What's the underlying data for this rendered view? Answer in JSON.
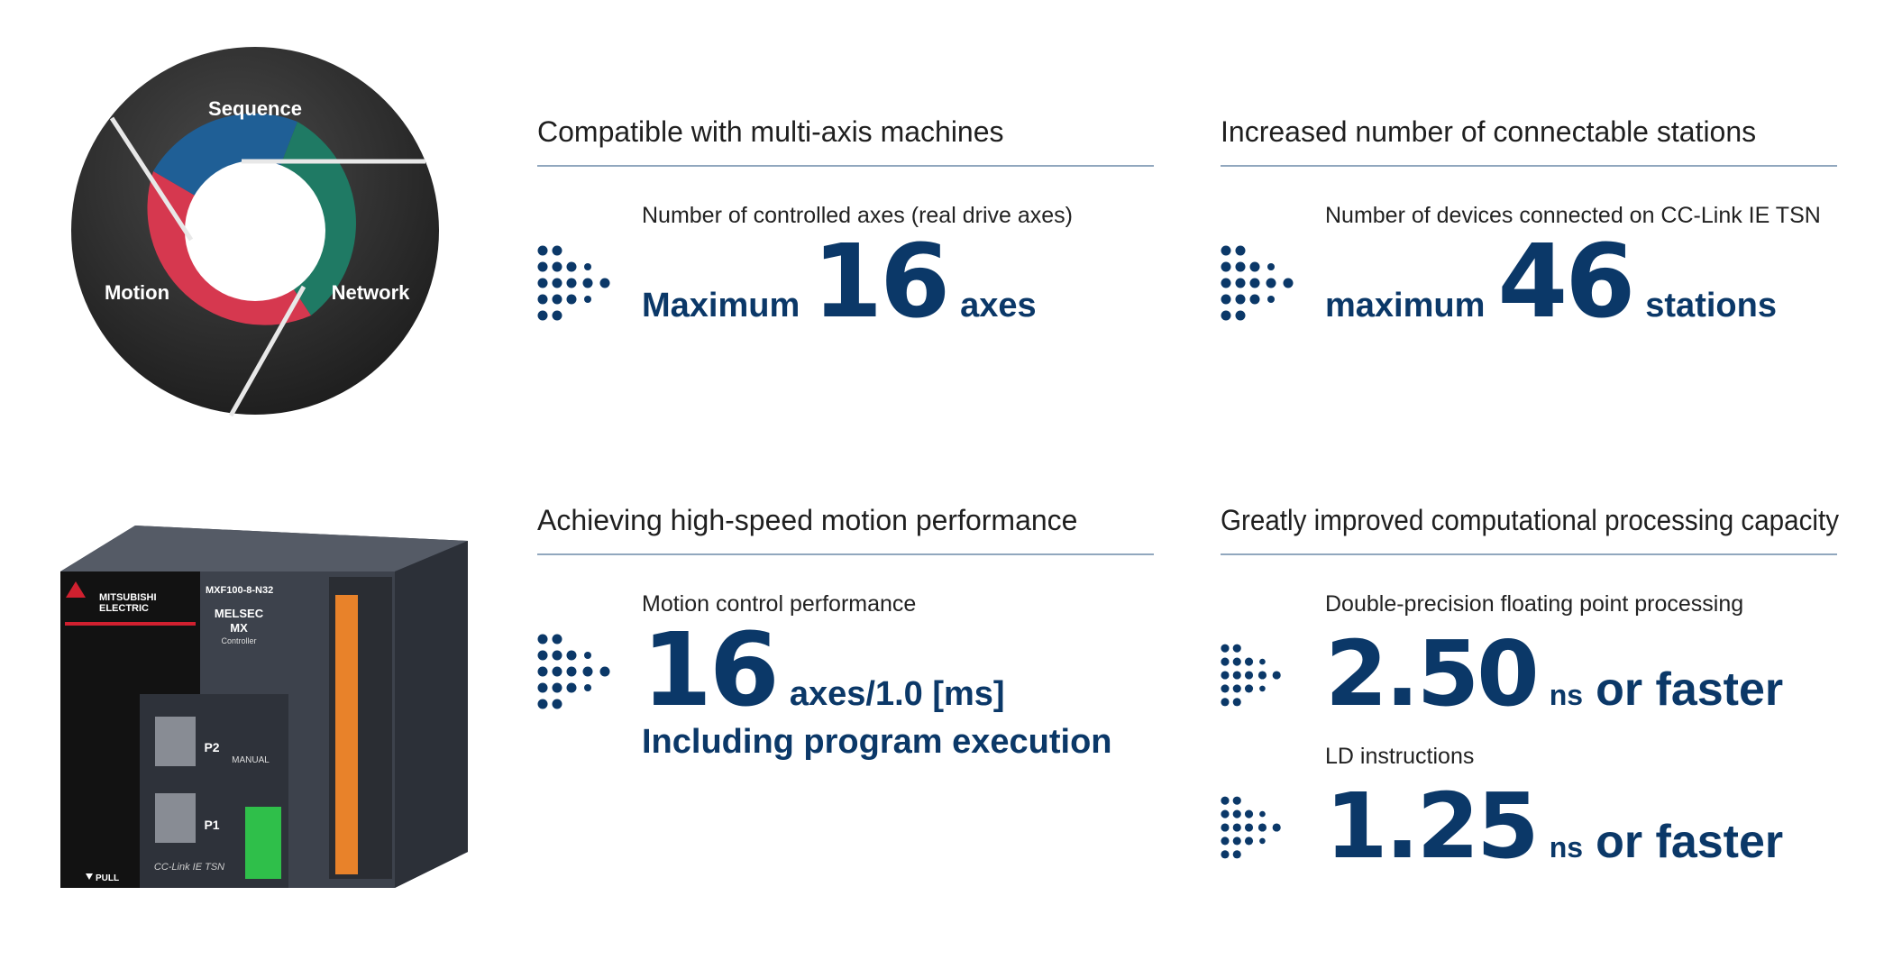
{
  "wheel": {
    "labels": [
      "Sequence",
      "Motion",
      "Network"
    ]
  },
  "product": {
    "brand": [
      "MITSUBISHI",
      "ELECTRIC"
    ],
    "model": "MXF100-8-N32",
    "series": "MELSEC",
    "name": "MX",
    "kind": "Controller",
    "ports": [
      "P2",
      "P1"
    ],
    "manual": "MANUAL",
    "network": "CC-Link IE TSN",
    "pull": "PULL"
  },
  "panels": [
    {
      "heading": "Compatible with multi-axis machines",
      "items": [
        {
          "label": "Number of controlled axes (real drive axes)",
          "prefix": "Maximum",
          "value": "16",
          "suffix": "axes"
        }
      ]
    },
    {
      "heading": "Increased number of connectable stations",
      "items": [
        {
          "label": "Number of devices connected on CC-Link IE TSN",
          "prefix": "maximum",
          "value": "46",
          "suffix": "stations"
        }
      ]
    },
    {
      "heading": "Achieving high-speed motion performance",
      "items": [
        {
          "label": "Motion control performance",
          "value": "16",
          "suffix": "axes/1.0 [ms]",
          "note": "Including program execution"
        }
      ]
    },
    {
      "heading": "Greatly improved computational processing capacity",
      "items": [
        {
          "label": "Double-precision floating point processing",
          "value": "2.50",
          "unit": "ns",
          "suffix": "or faster"
        },
        {
          "label": "LD instructions",
          "value": "1.25",
          "unit": "ns",
          "suffix": "or faster"
        }
      ]
    }
  ]
}
